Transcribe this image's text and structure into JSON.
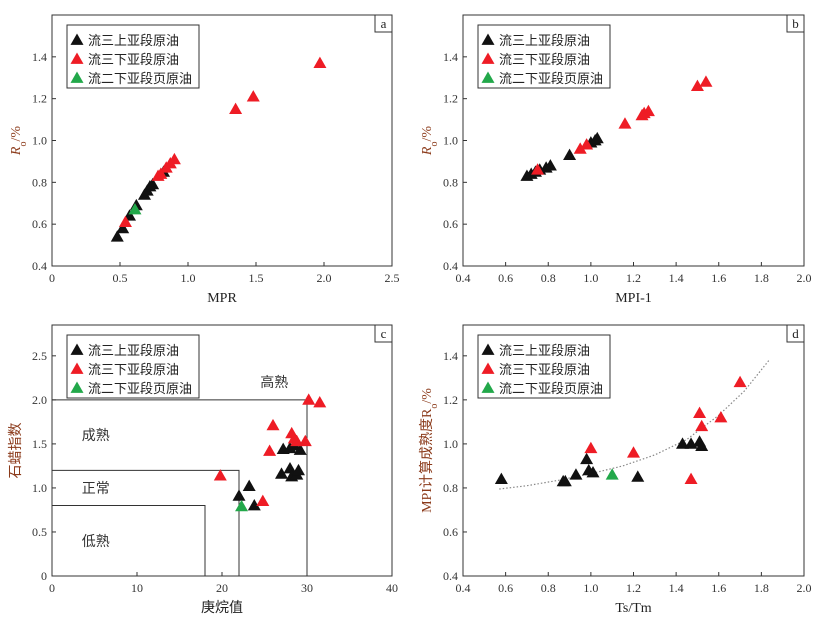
{
  "legend": [
    "流三上亚段原油",
    "流三下亚段原油",
    "流二下亚段页原油"
  ],
  "colors": {
    "流三上亚段原油": "#111111",
    "流三下亚段原油": "#ee1c25",
    "流二下亚段页原油": "#22a84a"
  },
  "chart_data": [
    {
      "type": "scatter",
      "panel": "a",
      "xlabel": "MPR",
      "ylabel": {
        "main": "R",
        "sub": "o",
        "suffix": "/%"
      },
      "xlim": [
        0,
        2.5
      ],
      "ylim": [
        0.4,
        1.6
      ],
      "xticks": [
        "0",
        "0.5",
        "1.0",
        "1.5",
        "2.0",
        "2.5"
      ],
      "xtick_values": [
        0,
        0.5,
        1.0,
        1.5,
        2.0,
        2.5
      ],
      "yticks": [
        "0.4",
        "0.6",
        "0.8",
        "1.0",
        "1.2",
        "1.4"
      ],
      "ytick_values": [
        0.4,
        0.6,
        0.8,
        1.0,
        1.2,
        1.4
      ],
      "legend_position": "top-left",
      "series": [
        {
          "name": "流三上亚段原油",
          "points": [
            [
              0.48,
              0.54
            ],
            [
              0.52,
              0.58
            ],
            [
              0.57,
              0.64
            ],
            [
              0.62,
              0.69
            ],
            [
              0.68,
              0.74
            ],
            [
              0.7,
              0.76
            ],
            [
              0.72,
              0.78
            ],
            [
              0.74,
              0.79
            ],
            [
              0.82,
              0.85
            ]
          ]
        },
        {
          "name": "流三下亚段原油",
          "points": [
            [
              0.54,
              0.61
            ],
            [
              0.78,
              0.83
            ],
            [
              0.8,
              0.84
            ],
            [
              0.84,
              0.87
            ],
            [
              0.87,
              0.89
            ],
            [
              0.9,
              0.91
            ],
            [
              1.35,
              1.15
            ],
            [
              1.48,
              1.21
            ],
            [
              1.97,
              1.37
            ]
          ]
        },
        {
          "name": "流二下亚段页原油",
          "points": [
            [
              0.61,
              0.67
            ]
          ]
        }
      ]
    },
    {
      "type": "scatter",
      "panel": "b",
      "xlabel": "MPI-1",
      "ylabel": {
        "main": "R",
        "sub": "o",
        "suffix": "/%"
      },
      "xlim": [
        0.4,
        2.0
      ],
      "ylim": [
        0.4,
        1.6
      ],
      "xticks": [
        "0.4",
        "0.6",
        "0.8",
        "1.0",
        "1.2",
        "1.4",
        "1.6",
        "1.8",
        "2.0"
      ],
      "xtick_values": [
        0.4,
        0.6,
        0.8,
        1.0,
        1.2,
        1.4,
        1.6,
        1.8,
        2.0
      ],
      "yticks": [
        "0.4",
        "0.6",
        "0.8",
        "1.0",
        "1.2",
        "1.4"
      ],
      "ytick_values": [
        0.4,
        0.6,
        0.8,
        1.0,
        1.2,
        1.4
      ],
      "legend_position": "top-left",
      "series": [
        {
          "name": "流三上亚段原油",
          "points": [
            [
              0.7,
              0.83
            ],
            [
              0.72,
              0.84
            ],
            [
              0.74,
              0.85
            ],
            [
              0.76,
              0.86
            ],
            [
              0.79,
              0.87
            ],
            [
              0.81,
              0.88
            ],
            [
              0.9,
              0.93
            ],
            [
              1.0,
              0.99
            ],
            [
              1.02,
              1.0
            ],
            [
              1.03,
              1.01
            ]
          ]
        },
        {
          "name": "流三下亚段原油",
          "points": [
            [
              0.75,
              0.86
            ],
            [
              0.95,
              0.96
            ],
            [
              0.98,
              0.98
            ],
            [
              1.16,
              1.08
            ],
            [
              1.24,
              1.12
            ],
            [
              1.25,
              1.13
            ],
            [
              1.27,
              1.14
            ],
            [
              1.5,
              1.26
            ],
            [
              1.54,
              1.28
            ]
          ]
        },
        {
          "name": "流二下亚段页原油",
          "points": []
        }
      ]
    },
    {
      "type": "scatter",
      "panel": "c",
      "xlabel": "庚烷值",
      "ylabel": {
        "main": "石蜡指数",
        "sub": "",
        "suffix": ""
      },
      "xlim": [
        0,
        40
      ],
      "ylim": [
        0,
        2.85
      ],
      "xticks": [
        "0",
        "10",
        "20",
        "30",
        "40"
      ],
      "xtick_values": [
        0,
        10,
        20,
        30,
        40
      ],
      "yticks": [
        "0",
        "0.5",
        "1.0",
        "1.5",
        "2.0",
        "2.5"
      ],
      "ytick_values": [
        0,
        0.5,
        1.0,
        1.5,
        2.0,
        2.5
      ],
      "legend_position": "top-left",
      "regions": [
        {
          "label": "低熟",
          "x_max": 18,
          "y_max": 0.8,
          "label_at": [
            3.5,
            0.4
          ]
        },
        {
          "label": "正常",
          "x_max": 22,
          "y_max": 1.2,
          "label_at": [
            3.5,
            1.0
          ]
        },
        {
          "label": "成熟",
          "x_max": 30,
          "y_max": 2.0,
          "label_at": [
            3.5,
            1.6
          ]
        },
        {
          "label": "高熟",
          "x_max": null,
          "y_max": null,
          "label_at": [
            24.5,
            2.2
          ]
        }
      ],
      "series": [
        {
          "name": "流三上亚段原油",
          "points": [
            [
              22,
              0.91
            ],
            [
              23.2,
              1.02
            ],
            [
              23.8,
              0.8
            ],
            [
              27,
              1.16
            ],
            [
              27.2,
              1.44
            ],
            [
              28,
              1.45
            ],
            [
              28,
              1.22
            ],
            [
              28.2,
              1.13
            ],
            [
              28.5,
              1.48
            ],
            [
              28.8,
              1.15
            ],
            [
              29,
              1.2
            ],
            [
              29.2,
              1.43
            ]
          ]
        },
        {
          "name": "流三下亚段原油",
          "points": [
            [
              19.8,
              1.14
            ],
            [
              24.8,
              0.85
            ],
            [
              25.6,
              1.42
            ],
            [
              26,
              1.71
            ],
            [
              28.2,
              1.62
            ],
            [
              28.5,
              1.56
            ],
            [
              28.8,
              1.53
            ],
            [
              29.8,
              1.53
            ],
            [
              30.2,
              2.0
            ],
            [
              31.5,
              1.97
            ]
          ]
        },
        {
          "name": "流二下亚段页原油",
          "points": [
            [
              22.3,
              0.79
            ]
          ]
        }
      ]
    },
    {
      "type": "scatter",
      "panel": "d",
      "xlabel": "Ts/Tm",
      "ylabel": {
        "main": "MPI计算成熟度R",
        "sub": "o",
        "suffix": "/%"
      },
      "xlim": [
        0.4,
        2.0
      ],
      "ylim": [
        0.4,
        1.54
      ],
      "xticks": [
        "0.4",
        "0.6",
        "0.8",
        "1.0",
        "1.2",
        "1.4",
        "1.6",
        "1.8",
        "2.0"
      ],
      "xtick_values": [
        0.4,
        0.6,
        0.8,
        1.0,
        1.2,
        1.4,
        1.6,
        1.8,
        2.0
      ],
      "yticks": [
        "0.4",
        "0.6",
        "0.8",
        "1.0",
        "1.2",
        "1.4"
      ],
      "ytick_values": [
        0.4,
        0.6,
        0.8,
        1.0,
        1.2,
        1.4
      ],
      "legend_position": "top-left",
      "trendline": [
        [
          0.57,
          0.795
        ],
        [
          0.7,
          0.81
        ],
        [
          0.85,
          0.835
        ],
        [
          1.0,
          0.865
        ],
        [
          1.15,
          0.9
        ],
        [
          1.3,
          0.95
        ],
        [
          1.45,
          1.02
        ],
        [
          1.6,
          1.13
        ],
        [
          1.72,
          1.24
        ],
        [
          1.84,
          1.385
        ]
      ],
      "series": [
        {
          "name": "流三上亚段原油",
          "points": [
            [
              0.58,
              0.84
            ],
            [
              0.87,
              0.83
            ],
            [
              0.88,
              0.83
            ],
            [
              0.93,
              0.86
            ],
            [
              0.98,
              0.93
            ],
            [
              0.99,
              0.88
            ],
            [
              1.01,
              0.87
            ],
            [
              1.22,
              0.85
            ],
            [
              1.43,
              1.0
            ],
            [
              1.47,
              1.0
            ],
            [
              1.51,
              1.01
            ],
            [
              1.52,
              0.99
            ]
          ]
        },
        {
          "name": "流三下亚段原油",
          "points": [
            [
              1.0,
              0.98
            ],
            [
              1.2,
              0.96
            ],
            [
              1.47,
              0.84
            ],
            [
              1.51,
              1.14
            ],
            [
              1.52,
              1.08
            ],
            [
              1.61,
              1.12
            ],
            [
              1.7,
              1.28
            ]
          ]
        },
        {
          "name": "流二下亚段页原油",
          "points": [
            [
              1.1,
              0.86
            ]
          ]
        }
      ]
    }
  ]
}
